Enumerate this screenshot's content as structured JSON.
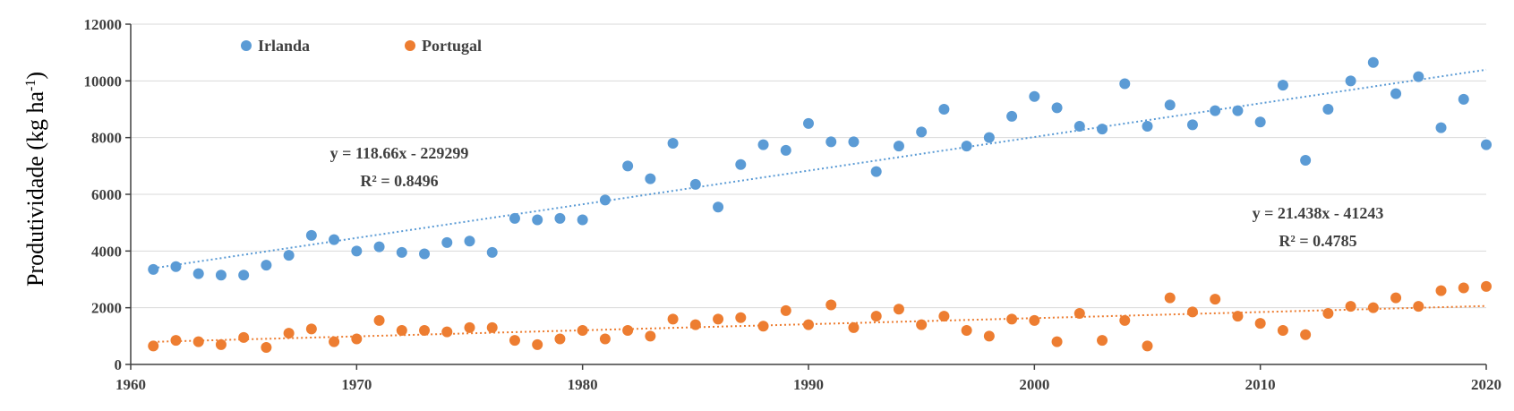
{
  "chart_data": {
    "type": "scatter",
    "title": "",
    "xlabel": "",
    "ylabel": "Produtividade (kg ha",
    "ylabel_sup": "-1",
    "ylabel_close": ")",
    "xlim": [
      1960,
      2020
    ],
    "ylim": [
      0,
      12000
    ],
    "xticks": [
      1960,
      1970,
      1980,
      1990,
      2000,
      2010,
      2020
    ],
    "yticks": [
      0,
      2000,
      4000,
      6000,
      8000,
      10000,
      12000
    ],
    "grid": "horizontal",
    "legend_position": "top-left",
    "x": [
      1961,
      1962,
      1963,
      1964,
      1965,
      1966,
      1967,
      1968,
      1969,
      1970,
      1971,
      1972,
      1973,
      1974,
      1975,
      1976,
      1977,
      1978,
      1979,
      1980,
      1981,
      1982,
      1983,
      1984,
      1985,
      1986,
      1987,
      1988,
      1989,
      1990,
      1991,
      1992,
      1993,
      1994,
      1995,
      1996,
      1997,
      1998,
      1999,
      2000,
      2001,
      2002,
      2003,
      2004,
      2005,
      2006,
      2007,
      2008,
      2009,
      2010,
      2011,
      2012,
      2013,
      2014,
      2015,
      2016,
      2017,
      2018,
      2019,
      2020
    ],
    "series": [
      {
        "name": "Irlanda",
        "color": "#5B9BD5",
        "values": [
          3350,
          3450,
          3200,
          3150,
          3150,
          3500,
          3850,
          4550,
          4400,
          4000,
          4150,
          3950,
          3900,
          4300,
          4350,
          3950,
          5150,
          5100,
          5150,
          5100,
          5800,
          7000,
          6550,
          7800,
          6350,
          5550,
          7050,
          7750,
          7550,
          8500,
          7850,
          7850,
          6800,
          7700,
          8200,
          9000,
          7700,
          8000,
          8750,
          9450,
          9050,
          8400,
          8300,
          9900,
          8400,
          9150,
          8450,
          8950,
          8950,
          8550,
          9850,
          7200,
          9000,
          10000,
          10650,
          9550,
          10150,
          8350,
          9350,
          7750
        ],
        "trendline": {
          "slope": 118.66,
          "intercept": -229299,
          "equation": "y = 118.66x - 229299",
          "r2": "R² = 0.8496"
        }
      },
      {
        "name": "Portugal",
        "color": "#ED7D31",
        "values": [
          650,
          850,
          800,
          700,
          950,
          600,
          1100,
          1250,
          800,
          900,
          1550,
          1200,
          1200,
          1150,
          1300,
          1300,
          850,
          700,
          900,
          1200,
          900,
          1200,
          1000,
          1600,
          1400,
          1600,
          1650,
          1350,
          1900,
          1400,
          2100,
          1300,
          1700,
          1950,
          1400,
          1700,
          1200,
          1000,
          1600,
          1550,
          800,
          1800,
          850,
          1550,
          650,
          2350,
          1850,
          2300,
          1700,
          1450,
          1200,
          1050,
          1800,
          2050,
          2000,
          2350,
          2050,
          2600,
          2700,
          2750
        ],
        "trendline": {
          "slope": 21.438,
          "intercept": -41243,
          "equation": "y = 21.438x - 41243",
          "r2": "R² = 0.4785"
        }
      }
    ]
  }
}
